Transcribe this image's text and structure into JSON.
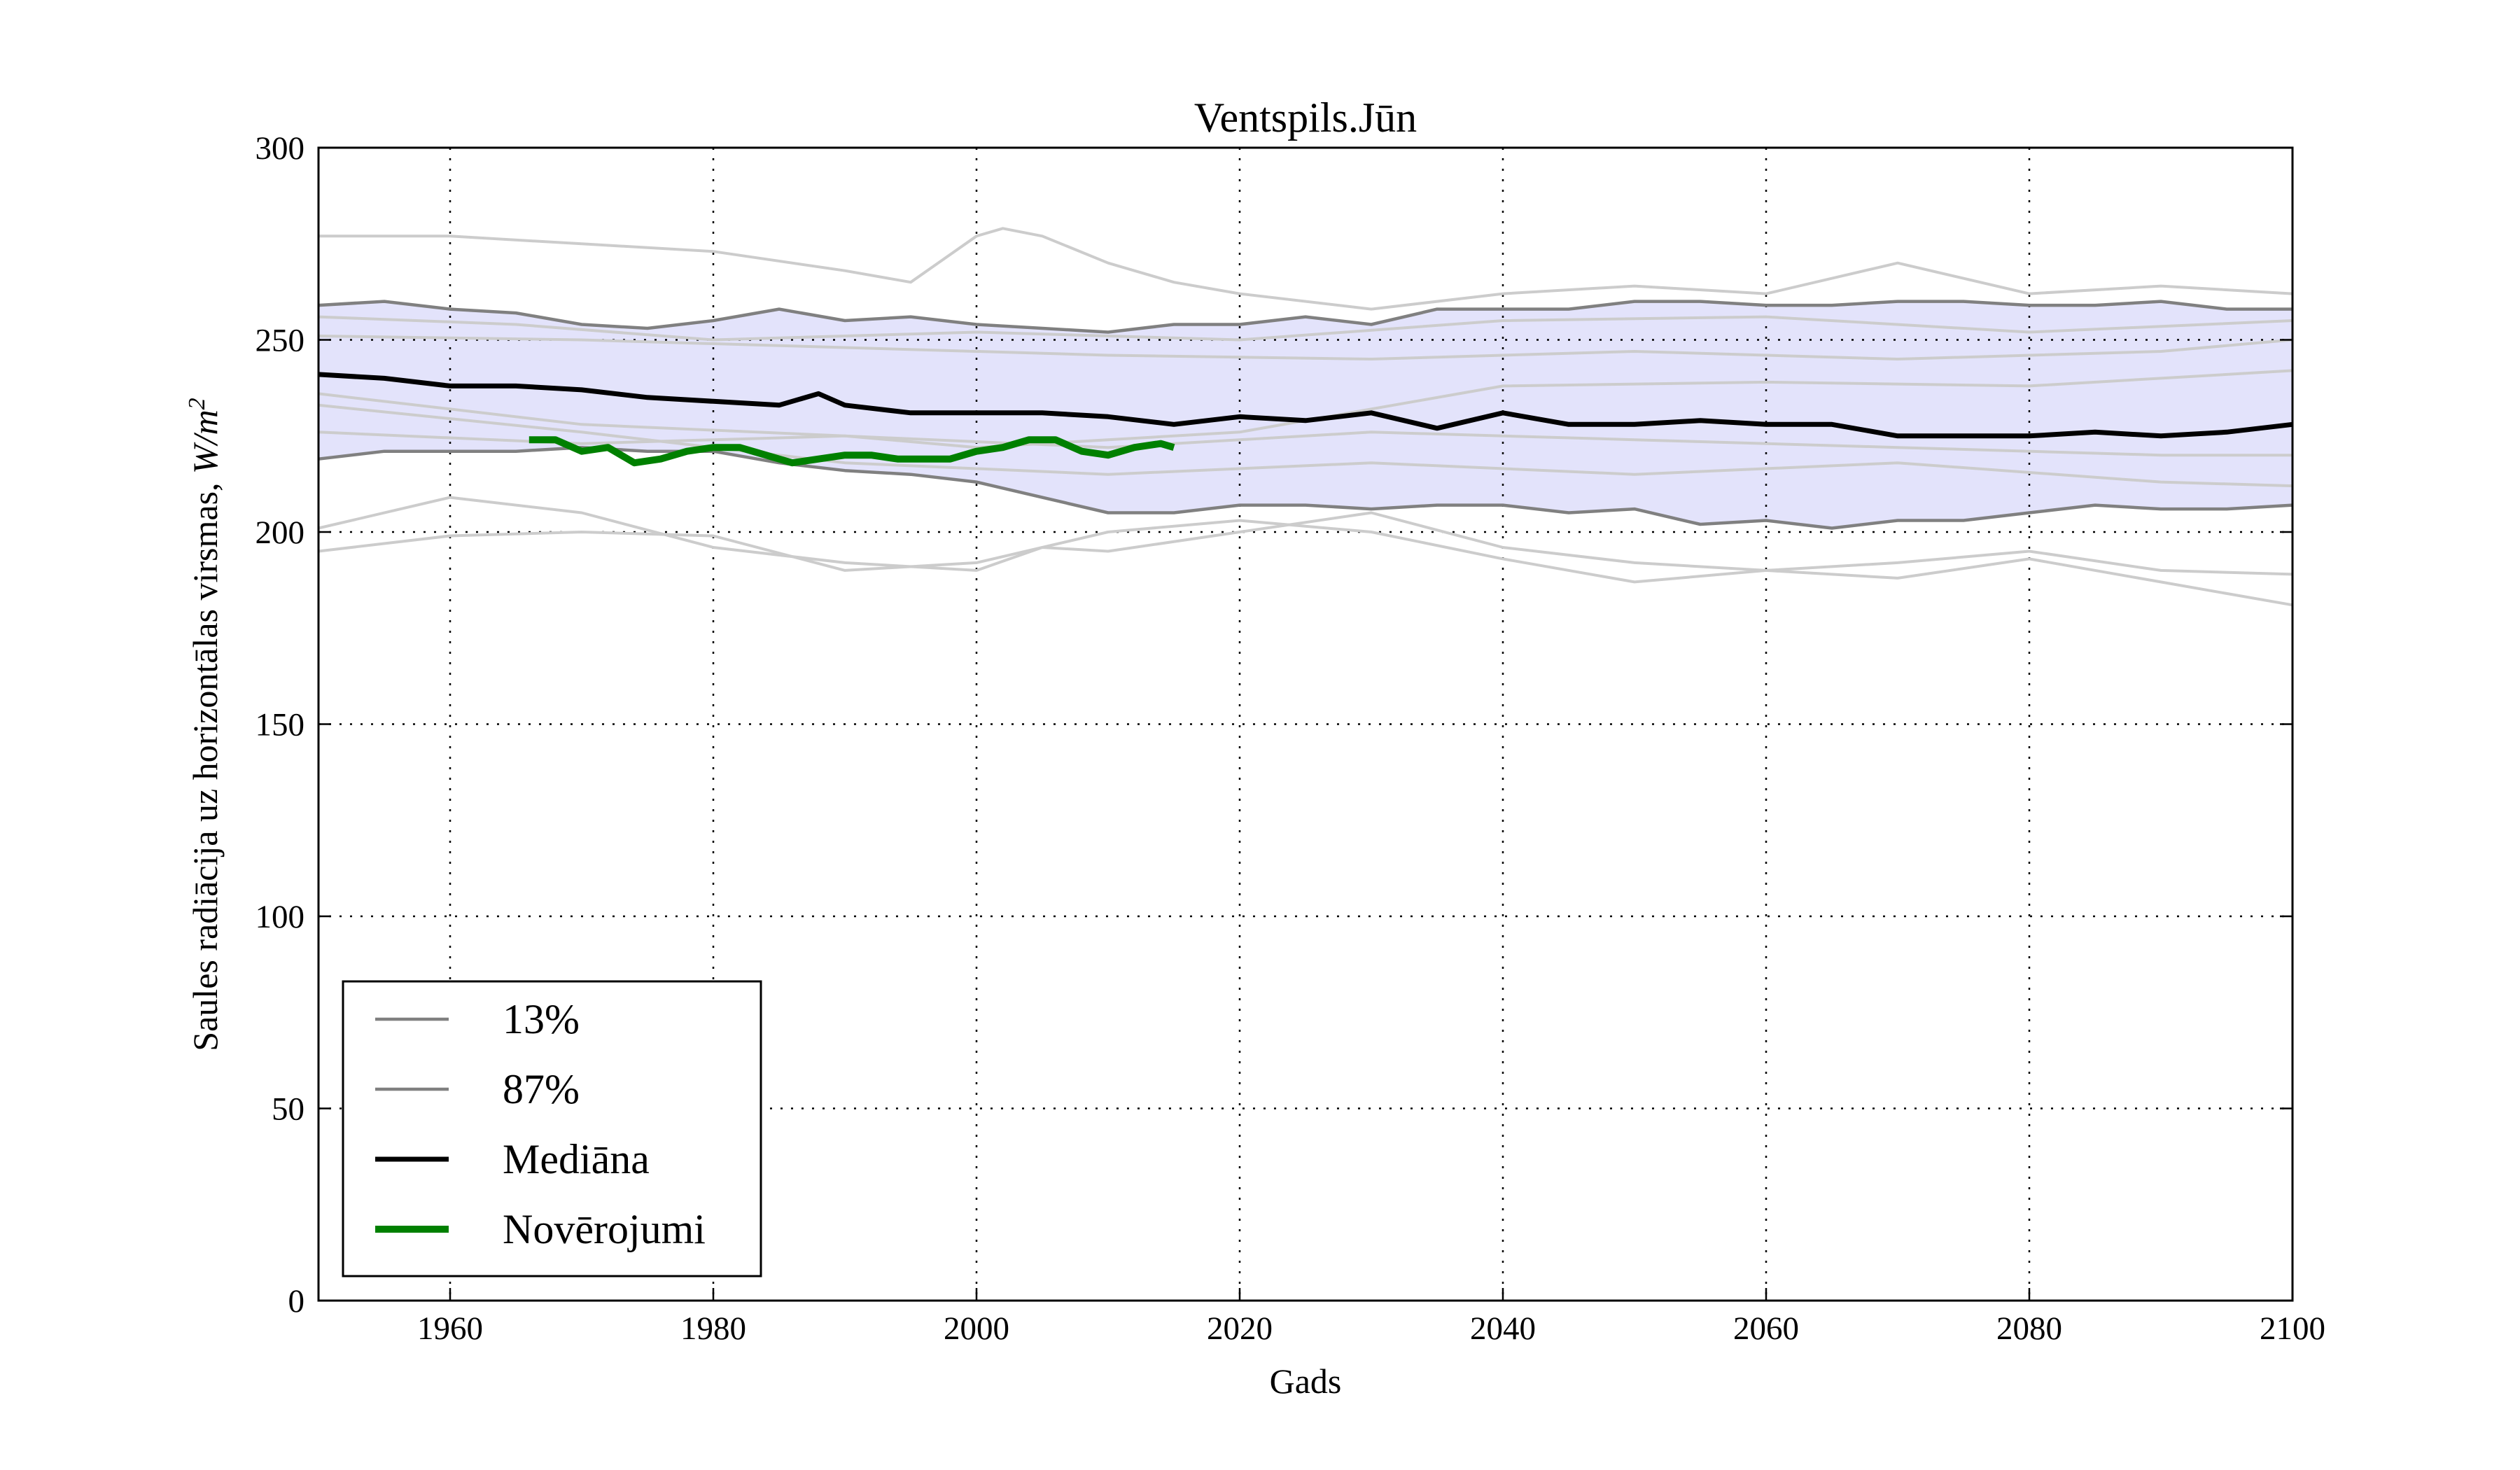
{
  "chart_data": {
    "type": "line",
    "title": "Ventspils.Jūn",
    "xlabel": "Gads",
    "ylabel": "Saules radiācija uz horizontālas virsmas, ",
    "ylabel_unit": "W/m",
    "ylabel_unit_sup": "2",
    "xlim": [
      1950,
      2100
    ],
    "ylim": [
      0,
      300
    ],
    "xticks": [
      1960,
      1980,
      2000,
      2020,
      2040,
      2060,
      2080,
      2100
    ],
    "yticks": [
      0,
      50,
      100,
      150,
      200,
      250,
      300
    ],
    "grid": true,
    "legend_position": "lower-left",
    "colors": {
      "band": "#e3e3fb",
      "percentile": "#808080",
      "median": "#000000",
      "observed": "#008000",
      "ensemble": "#cccccc"
    },
    "band": {
      "lower": "13%",
      "upper": "87%"
    },
    "series": [
      {
        "name": "13%",
        "role": "percentile",
        "x": [
          1950,
          1955,
          1960,
          1965,
          1970,
          1975,
          1980,
          1985,
          1990,
          1995,
          2000,
          2005,
          2010,
          2015,
          2020,
          2025,
          2030,
          2035,
          2040,
          2045,
          2050,
          2055,
          2060,
          2065,
          2070,
          2075,
          2080,
          2085,
          2090,
          2095,
          2100
        ],
        "y": [
          219,
          221,
          221,
          221,
          222,
          221,
          221,
          218,
          216,
          215,
          213,
          209,
          205,
          205,
          207,
          207,
          206,
          207,
          207,
          205,
          206,
          202,
          203,
          201,
          203,
          203,
          205,
          207,
          206,
          206,
          207
        ]
      },
      {
        "name": "87%",
        "role": "percentile",
        "x": [
          1950,
          1955,
          1960,
          1965,
          1970,
          1975,
          1980,
          1985,
          1990,
          1995,
          2000,
          2005,
          2010,
          2015,
          2020,
          2025,
          2030,
          2035,
          2040,
          2045,
          2050,
          2055,
          2060,
          2065,
          2070,
          2075,
          2080,
          2085,
          2090,
          2095,
          2100
        ],
        "y": [
          259,
          260,
          258,
          257,
          254,
          253,
          255,
          258,
          255,
          256,
          254,
          253,
          252,
          254,
          254,
          256,
          254,
          258,
          258,
          258,
          260,
          260,
          259,
          259,
          260,
          260,
          259,
          259,
          260,
          258,
          258
        ]
      },
      {
        "name": "Mediāna",
        "role": "median",
        "x": [
          1950,
          1955,
          1960,
          1965,
          1970,
          1975,
          1980,
          1985,
          1988,
          1990,
          1995,
          2000,
          2005,
          2010,
          2015,
          2020,
          2025,
          2030,
          2035,
          2040,
          2045,
          2050,
          2055,
          2060,
          2065,
          2070,
          2075,
          2080,
          2085,
          2090,
          2095,
          2100
        ],
        "y": [
          241,
          240,
          238,
          238,
          237,
          235,
          234,
          233,
          236,
          233,
          231,
          231,
          231,
          230,
          228,
          230,
          229,
          231,
          227,
          231,
          228,
          228,
          229,
          228,
          228,
          225,
          225,
          225,
          226,
          225,
          226,
          228
        ]
      },
      {
        "name": "Novērojumi",
        "role": "observed",
        "x": [
          1966,
          1968,
          1970,
          1972,
          1974,
          1976,
          1978,
          1980,
          1982,
          1984,
          1986,
          1988,
          1990,
          1992,
          1994,
          1996,
          1998,
          2000,
          2002,
          2004,
          2006,
          2008,
          2010,
          2012,
          2014,
          2015
        ],
        "y": [
          224,
          224,
          221,
          222,
          218,
          219,
          221,
          222,
          222,
          220,
          218,
          219,
          220,
          220,
          219,
          219,
          219,
          221,
          222,
          224,
          224,
          221,
          220,
          222,
          223,
          222
        ]
      }
    ],
    "ensemble": [
      {
        "x": [
          1950,
          1960,
          1970,
          1980,
          1990,
          1995,
          2000,
          2002,
          2005,
          2010,
          2015,
          2020,
          2030,
          2040,
          2050,
          2060,
          2070,
          2080,
          2090,
          2100
        ],
        "y": [
          277,
          277,
          275,
          273,
          268,
          265,
          277,
          279,
          277,
          270,
          265,
          262,
          258,
          262,
          264,
          262,
          270,
          262,
          264,
          262
        ]
      },
      {
        "x": [
          1950,
          1960,
          1970,
          1980,
          1990,
          2000,
          2010,
          2020,
          2030,
          2040,
          2050,
          2060,
          2070,
          2080,
          2090,
          2100
        ],
        "y": [
          195,
          199,
          200,
          199,
          190,
          192,
          200,
          203,
          200,
          193,
          187,
          190,
          188,
          193,
          187,
          181
        ]
      },
      {
        "x": [
          1950,
          1960,
          1970,
          1980,
          1990,
          2000,
          2005,
          2010,
          2020,
          2030,
          2040,
          2050,
          2060,
          2070,
          2080,
          2090,
          2100
        ],
        "y": [
          201,
          209,
          205,
          196,
          192,
          190,
          196,
          195,
          200,
          205,
          196,
          192,
          190,
          192,
          195,
          190,
          189
        ]
      },
      {
        "x": [
          1950,
          1970,
          1990,
          2010,
          2030,
          2050,
          2070,
          2090,
          2100
        ],
        "y": [
          236,
          228,
          225,
          222,
          226,
          224,
          222,
          220,
          220
        ]
      },
      {
        "x": [
          1950,
          1970,
          1990,
          2010,
          2030,
          2050,
          2070,
          2090,
          2100
        ],
        "y": [
          251,
          250,
          248,
          246,
          245,
          247,
          245,
          247,
          250
        ]
      },
      {
        "x": [
          1950,
          1970,
          1990,
          2010,
          2030,
          2050,
          2070,
          2090,
          2100
        ],
        "y": [
          233,
          226,
          218,
          215,
          218,
          215,
          218,
          213,
          212
        ]
      },
      {
        "x": [
          1950,
          1970,
          1990,
          2000,
          2020,
          2040,
          2060,
          2080,
          2100
        ],
        "y": [
          226,
          223,
          225,
          222,
          226,
          238,
          239,
          238,
          242
        ]
      },
      {
        "x": [
          1950,
          1965,
          1980,
          2000,
          2020,
          2040,
          2060,
          2080,
          2100
        ],
        "y": [
          256,
          254,
          250,
          252,
          250,
          255,
          256,
          252,
          255
        ]
      }
    ]
  }
}
